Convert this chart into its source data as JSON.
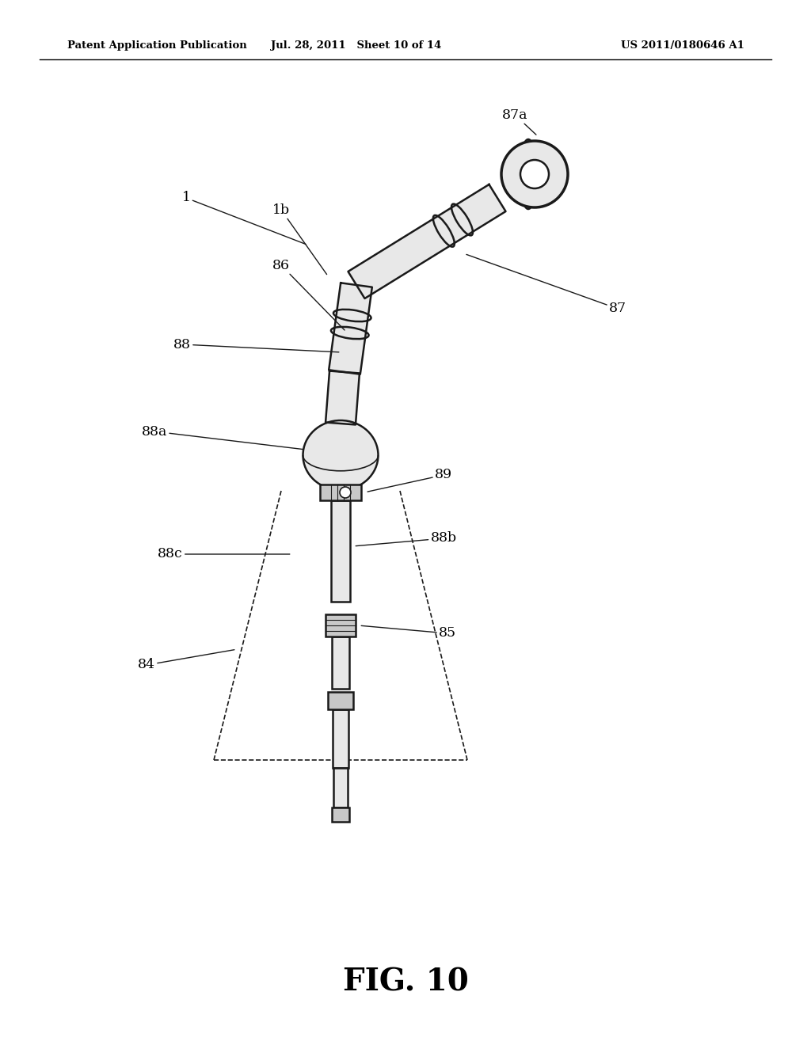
{
  "bg_color": "#ffffff",
  "header_left": "Patent Application Publication",
  "header_mid": "Jul. 28, 2011   Sheet 10 of 14",
  "header_right": "US 2011/0180646 A1",
  "fig_label": "FIG. 10",
  "line_color": "#1a1a1a",
  "fill_light": "#e8e8e8",
  "fill_mid": "#c8c8c8",
  "fill_dark": "#b0b0b0"
}
